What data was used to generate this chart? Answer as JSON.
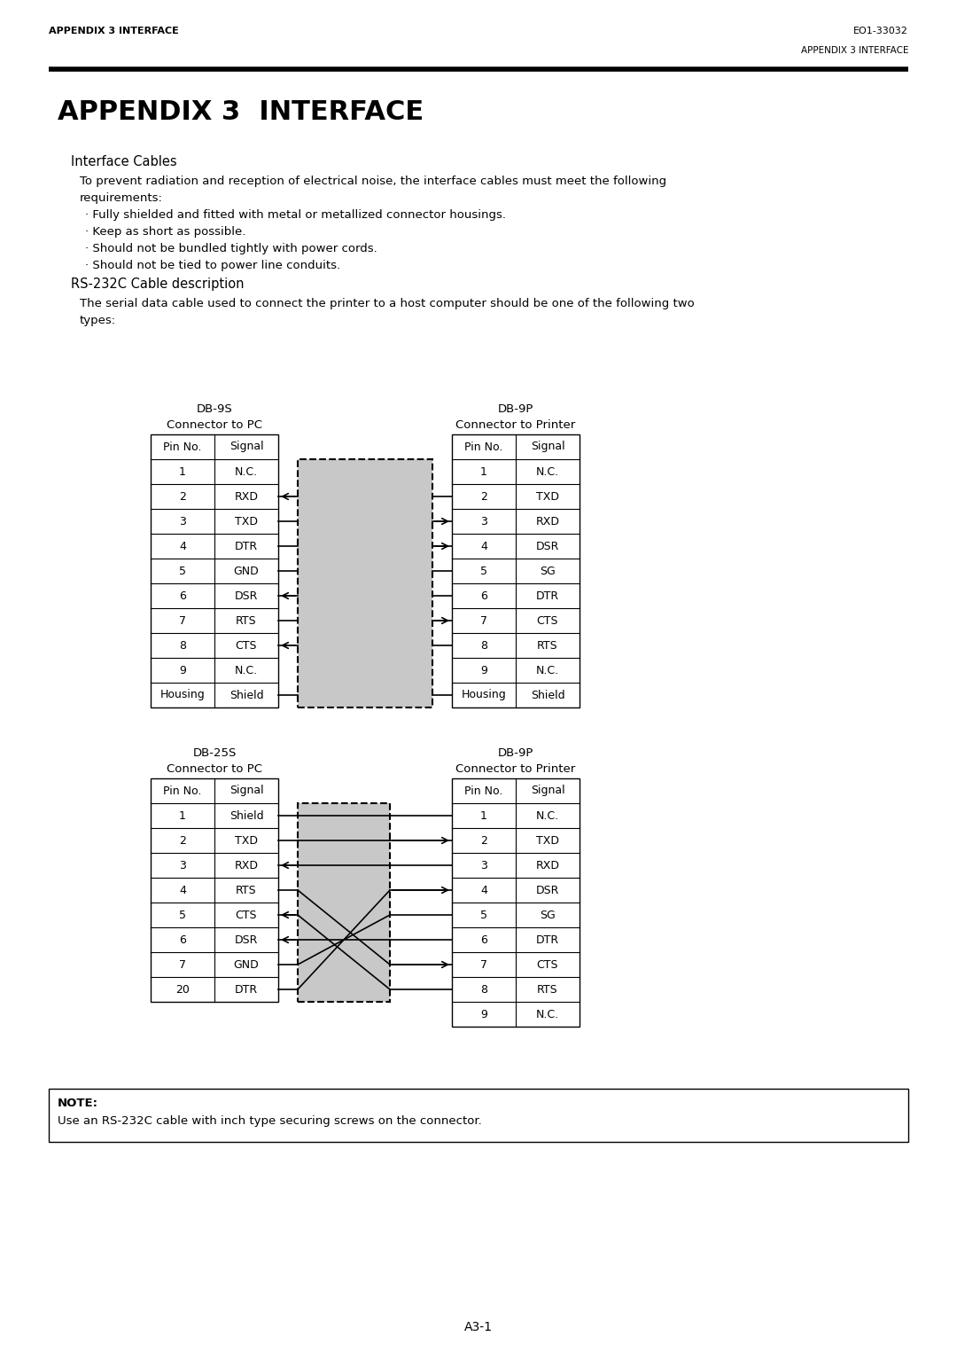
{
  "header_left": "APPENDIX 3 INTERFACE",
  "header_right": "EO1-33032",
  "header_right2": "APPENDIX 3 INTERFACE",
  "title": "APPENDIX 3  INTERFACE",
  "section1_title": "Interface Cables",
  "section1_body_line1": "To prevent radiation and reception of electrical noise, the interface cables must meet the following",
  "section1_body_line2": "requirements:",
  "section1_bullets": [
    "· Fully shielded and fitted with metal or metallized connector housings.",
    "· Keep as short as possible.",
    "· Should not be bundled tightly with power cords.",
    "· Should not be tied to power line conduits."
  ],
  "section2_title": "RS-232C Cable description",
  "section2_body_line1": "The serial data cable used to connect the printer to a host computer should be one of the following two",
  "section2_body_line2": "types:",
  "table1_left_title": "DB-9S",
  "table1_left_sub": "Connector to PC",
  "table1_right_title": "DB-9P",
  "table1_right_sub": "Connector to Printer",
  "table1_left": [
    [
      "Pin No.",
      "Signal"
    ],
    [
      "1",
      "N.C."
    ],
    [
      "2",
      "RXD"
    ],
    [
      "3",
      "TXD"
    ],
    [
      "4",
      "DTR"
    ],
    [
      "5",
      "GND"
    ],
    [
      "6",
      "DSR"
    ],
    [
      "7",
      "RTS"
    ],
    [
      "8",
      "CTS"
    ],
    [
      "9",
      "N.C."
    ],
    [
      "Housing",
      "Shield"
    ]
  ],
  "table1_right": [
    [
      "Pin No.",
      "Signal"
    ],
    [
      "1",
      "N.C."
    ],
    [
      "2",
      "TXD"
    ],
    [
      "3",
      "RXD"
    ],
    [
      "4",
      "DSR"
    ],
    [
      "5",
      "SG"
    ],
    [
      "6",
      "DTR"
    ],
    [
      "7",
      "CTS"
    ],
    [
      "8",
      "RTS"
    ],
    [
      "9",
      "N.C."
    ],
    [
      "Housing",
      "Shield"
    ]
  ],
  "table2_left_title": "DB-25S",
  "table2_left_sub": "Connector to PC",
  "table2_right_title": "DB-9P",
  "table2_right_sub": "Connector to Printer",
  "table2_left": [
    [
      "Pin No.",
      "Signal"
    ],
    [
      "1",
      "Shield"
    ],
    [
      "2",
      "TXD"
    ],
    [
      "3",
      "RXD"
    ],
    [
      "4",
      "RTS"
    ],
    [
      "5",
      "CTS"
    ],
    [
      "6",
      "DSR"
    ],
    [
      "7",
      "GND"
    ],
    [
      "20",
      "DTR"
    ]
  ],
  "table2_right": [
    [
      "Pin No.",
      "Signal"
    ],
    [
      "1",
      "N.C."
    ],
    [
      "2",
      "TXD"
    ],
    [
      "3",
      "RXD"
    ],
    [
      "4",
      "DSR"
    ],
    [
      "5",
      "SG"
    ],
    [
      "6",
      "DTR"
    ],
    [
      "7",
      "CTS"
    ],
    [
      "8",
      "RTS"
    ],
    [
      "9",
      "N.C."
    ]
  ],
  "note_title": "NOTE:",
  "note_body": "Use an RS-232C cable with inch type securing screws on the connector.",
  "footer": "A3-1"
}
